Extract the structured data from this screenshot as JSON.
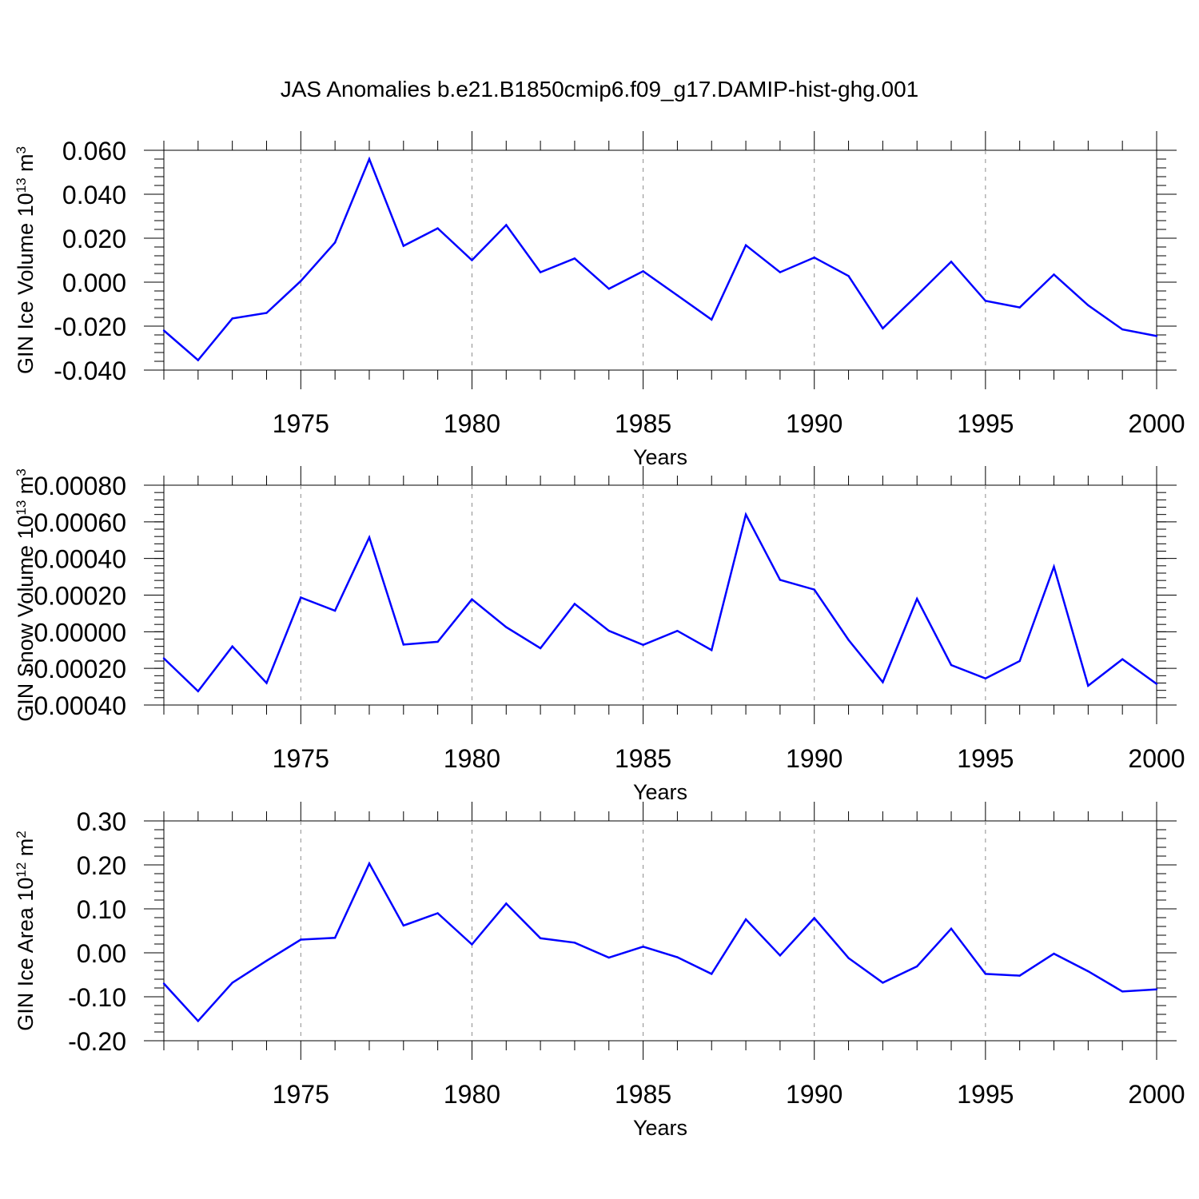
{
  "figure": {
    "title": "JAS Anomalies b.e21.B1850cmip6.f09_g17.DAMIP-hist-ghg.001"
  },
  "colors": {
    "line": "#0000ff",
    "axis": "#000000",
    "grid": "#8c8c8c"
  },
  "chart_data": [
    {
      "type": "line",
      "ylabel": "GIN Ice Volume 10",
      "ylabel_sup": "13",
      "ylabel_unit": " m",
      "ylabel_unit_sup": "3",
      "xlabel": "Years",
      "xlim": [
        1971,
        2000
      ],
      "ylim": [
        -0.04,
        0.06
      ],
      "y_ticks": [
        -0.04,
        -0.02,
        0.0,
        0.02,
        0.04,
        0.06
      ],
      "y_tick_labels": [
        "-0.040",
        "-0.020",
        "0.000",
        "0.020",
        "0.040",
        "0.060"
      ],
      "y_minor_step": 0.004,
      "x_ticks": [
        1975,
        1980,
        1985,
        1990,
        1995,
        2000
      ],
      "x_tick_labels": [
        "1975",
        "1980",
        "1985",
        "1990",
        "1995",
        "2000"
      ],
      "grid_x": true,
      "x": [
        1971,
        1972,
        1973,
        1974,
        1975,
        1976,
        1977,
        1978,
        1979,
        1980,
        1981,
        1982,
        1983,
        1984,
        1985,
        1986,
        1987,
        1988,
        1989,
        1990,
        1991,
        1992,
        1993,
        1994,
        1995,
        1996,
        1997,
        1998,
        1999,
        2000
      ],
      "values": [
        -0.022,
        -0.0355,
        -0.0165,
        -0.014,
        0.0005,
        0.018,
        0.056,
        0.0165,
        0.0245,
        0.01,
        0.026,
        0.0045,
        0.0108,
        -0.003,
        0.005,
        -0.006,
        -0.017,
        0.0168,
        0.0045,
        0.0112,
        0.0028,
        -0.021,
        -0.006,
        0.0093,
        -0.0085,
        -0.0115,
        0.0035,
        -0.0105,
        -0.0215,
        -0.0245
      ]
    },
    {
      "type": "line",
      "ylabel": "GIN Snow Volume 10",
      "ylabel_sup": "13",
      "ylabel_unit": " m",
      "ylabel_unit_sup": "3",
      "xlabel": "Years",
      "xlim": [
        1971,
        2000
      ],
      "ylim": [
        -0.0004,
        0.0008
      ],
      "y_ticks": [
        -0.0004,
        -0.0002,
        0.0,
        0.0002,
        0.0004,
        0.0006,
        0.0008
      ],
      "y_tick_labels": [
        "-0.00040",
        "-0.00020",
        "0.00000",
        "0.00020",
        "0.00040",
        "0.00060",
        "0.00080"
      ],
      "y_minor_step": 4e-05,
      "x_ticks": [
        1975,
        1980,
        1985,
        1990,
        1995,
        2000
      ],
      "x_tick_labels": [
        "1975",
        "1980",
        "1985",
        "1990",
        "1995",
        "2000"
      ],
      "grid_x": true,
      "x": [
        1971,
        1972,
        1973,
        1974,
        1975,
        1976,
        1977,
        1978,
        1979,
        1980,
        1981,
        1982,
        1983,
        1984,
        1985,
        1986,
        1987,
        1988,
        1989,
        1990,
        1991,
        1992,
        1993,
        1994,
        1995,
        1996,
        1997,
        1998,
        1999,
        2000
      ],
      "values": [
        -0.000145,
        -0.000325,
        -8e-05,
        -0.00028,
        0.000187,
        0.000115,
        0.000515,
        -7e-05,
        -5.5e-05,
        0.000177,
        2.5e-05,
        -9e-05,
        0.000152,
        5e-06,
        -7.2e-05,
        5e-06,
        -0.0001,
        0.00064,
        0.000283,
        0.00023,
        -4.5e-05,
        -0.000275,
        0.00018,
        -0.000182,
        -0.000255,
        -0.00016,
        0.000355,
        -0.000295,
        -0.00015,
        -0.000285
      ]
    },
    {
      "type": "line",
      "ylabel": "GIN Ice Area 10",
      "ylabel_sup": "12",
      "ylabel_unit": " m",
      "ylabel_unit_sup": "2",
      "xlabel": "Years",
      "xlim": [
        1971,
        2000
      ],
      "ylim": [
        -0.2,
        0.3
      ],
      "y_ticks": [
        -0.2,
        -0.1,
        0.0,
        0.1,
        0.2,
        0.3
      ],
      "y_tick_labels": [
        "-0.20",
        "-0.10",
        "0.00",
        "0.10",
        "0.20",
        "0.30"
      ],
      "y_minor_step": 0.02,
      "x_ticks": [
        1975,
        1980,
        1985,
        1990,
        1995,
        2000
      ],
      "x_tick_labels": [
        "1975",
        "1980",
        "1985",
        "1990",
        "1995",
        "2000"
      ],
      "grid_x": true,
      "x": [
        1971,
        1972,
        1973,
        1974,
        1975,
        1976,
        1977,
        1978,
        1979,
        1980,
        1981,
        1982,
        1983,
        1984,
        1985,
        1986,
        1987,
        1988,
        1989,
        1990,
        1991,
        1992,
        1993,
        1994,
        1995,
        1996,
        1997,
        1998,
        1999,
        2000
      ],
      "values": [
        -0.07,
        -0.155,
        -0.068,
        -0.018,
        0.03,
        0.034,
        0.203,
        0.062,
        0.09,
        0.019,
        0.112,
        0.033,
        0.023,
        -0.011,
        0.014,
        -0.01,
        -0.048,
        0.076,
        -0.006,
        0.079,
        -0.012,
        -0.068,
        -0.031,
        0.055,
        -0.048,
        -0.052,
        -0.002,
        -0.042,
        -0.088,
        -0.083
      ]
    }
  ]
}
